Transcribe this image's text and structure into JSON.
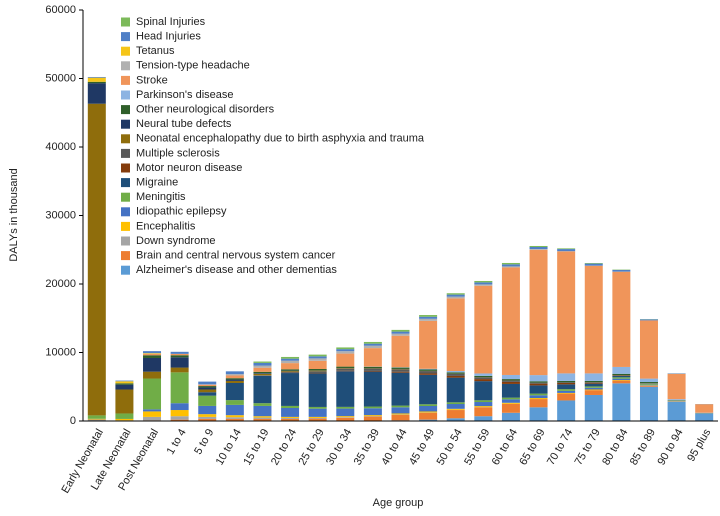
{
  "chart_data": {
    "type": "stacked_bar",
    "y_label": "DALYs in thousand",
    "x_label": "Age group",
    "categories": [
      "Early Neonatal",
      "Late Neonatal",
      "Post Neonatal",
      "1 to 4",
      "5 to 9",
      "10 to 14",
      "15 to 19",
      "20 to 24",
      "25 to 29",
      "30 to 34",
      "35 to 39",
      "40 to 44",
      "45 to 49",
      "50 to 54",
      "55 to 59",
      "60 to 64",
      "65 to 69",
      "70 to 74",
      "75 to 79",
      "80 to 84",
      "85 to 89",
      "90 to 94",
      "95 plus"
    ],
    "ylim": [
      0,
      60000
    ],
    "yticks": [
      0,
      10000,
      20000,
      30000,
      40000,
      50000,
      60000
    ],
    "grid": false,
    "legend": "upper left",
    "series": [
      {
        "name": "Spinal Injuries",
        "color": "#7cba5a",
        "values": [
          0,
          0,
          0,
          0,
          0,
          0,
          200,
          250,
          250,
          250,
          250,
          250,
          250,
          200,
          200,
          200,
          150,
          100,
          80,
          50,
          30,
          10,
          5
        ]
      },
      {
        "name": "Head Injuries",
        "color": "#4f7fc6",
        "values": [
          100,
          100,
          300,
          300,
          400,
          400,
          400,
          300,
          300,
          300,
          300,
          300,
          300,
          300,
          300,
          300,
          300,
          300,
          300,
          250,
          150,
          60,
          20
        ]
      },
      {
        "name": "Tetanus",
        "color": "#f5c518",
        "values": [
          600,
          300,
          100,
          0,
          0,
          0,
          0,
          0,
          0,
          0,
          0,
          0,
          0,
          0,
          0,
          0,
          0,
          0,
          0,
          0,
          0,
          0,
          0
        ]
      },
      {
        "name": "Tension-type headache",
        "color": "#b0b0b0",
        "values": [
          0,
          0,
          0,
          0,
          50,
          200,
          300,
          350,
          350,
          350,
          350,
          300,
          300,
          250,
          200,
          150,
          100,
          50,
          30,
          20,
          0,
          0,
          0
        ]
      },
      {
        "name": "Stroke",
        "color": "#f0955a",
        "values": [
          0,
          0,
          200,
          200,
          200,
          400,
          600,
          900,
          1200,
          1900,
          2700,
          4600,
          7000,
          10600,
          12800,
          15700,
          18300,
          17800,
          15700,
          13900,
          8500,
          3700,
          1250
        ]
      },
      {
        "name": "Parkinson's disease",
        "color": "#8db4e2",
        "values": [
          0,
          0,
          0,
          0,
          0,
          0,
          0,
          0,
          0,
          0,
          30,
          50,
          100,
          200,
          350,
          600,
          900,
          1100,
          1100,
          1000,
          500,
          150,
          40
        ]
      },
      {
        "name": "Other neurological disorders",
        "color": "#2f5f2a",
        "values": [
          200,
          200,
          400,
          300,
          200,
          200,
          200,
          200,
          200,
          200,
          200,
          200,
          200,
          200,
          200,
          200,
          200,
          200,
          200,
          200,
          150,
          60,
          20
        ]
      },
      {
        "name": "Neural tube defects",
        "color": "#1f3864",
        "values": [
          3000,
          700,
          2000,
          1500,
          300,
          200,
          100,
          50,
          30,
          20,
          0,
          0,
          0,
          0,
          0,
          0,
          0,
          0,
          0,
          0,
          0,
          0,
          0
        ]
      },
      {
        "name": "Neonatal encephalopathy due to birth asphyxia and trauma",
        "color": "#8f6d0c",
        "values": [
          45500,
          3500,
          1000,
          700,
          400,
          300,
          200,
          100,
          100,
          80,
          50,
          50,
          30,
          20,
          20,
          10,
          0,
          0,
          0,
          0,
          0,
          0,
          0
        ]
      },
      {
        "name": "Multiple sclerosis",
        "color": "#595959",
        "values": [
          0,
          0,
          0,
          0,
          0,
          0,
          50,
          150,
          250,
          300,
          350,
          350,
          350,
          300,
          250,
          200,
          150,
          100,
          50,
          30,
          10,
          0,
          0
        ]
      },
      {
        "name": "Motor neuron disease",
        "color": "#843c0c",
        "values": [
          0,
          0,
          0,
          0,
          0,
          0,
          30,
          50,
          60,
          80,
          100,
          150,
          200,
          250,
          300,
          300,
          250,
          200,
          150,
          80,
          30,
          10,
          0
        ]
      },
      {
        "name": "Migraine",
        "color": "#1f4e79",
        "values": [
          0,
          0,
          0,
          0,
          500,
          2500,
          4000,
          4800,
          4900,
          5200,
          5100,
          4800,
          4300,
          3600,
          2800,
          2000,
          1200,
          700,
          400,
          200,
          50,
          10,
          0
        ]
      },
      {
        "name": "Meningitis",
        "color": "#70ad47",
        "values": [
          500,
          800,
          4500,
          4500,
          1500,
          700,
          400,
          300,
          250,
          250,
          250,
          250,
          250,
          250,
          250,
          250,
          250,
          250,
          200,
          200,
          150,
          60,
          20
        ]
      },
      {
        "name": "Idiopathic epilepsy",
        "color": "#4472c4",
        "values": [
          0,
          0,
          300,
          1000,
          1200,
          1500,
          1500,
          1300,
          1200,
          1100,
          1000,
          900,
          800,
          700,
          600,
          500,
          400,
          300,
          250,
          200,
          100,
          40,
          10
        ]
      },
      {
        "name": "Encephalitis",
        "color": "#ffc000",
        "values": [
          100,
          200,
          800,
          900,
          400,
          300,
          200,
          150,
          150,
          150,
          150,
          150,
          150,
          150,
          150,
          150,
          150,
          100,
          100,
          80,
          50,
          20,
          5
        ]
      },
      {
        "name": "Down syndrome",
        "color": "#a5a5a5",
        "values": [
          200,
          100,
          500,
          500,
          300,
          250,
          200,
          150,
          100,
          80,
          60,
          50,
          40,
          30,
          20,
          10,
          0,
          0,
          0,
          0,
          0,
          0,
          0
        ]
      },
      {
        "name": "Brain and central nervous system cancer",
        "color": "#ed7d31",
        "values": [
          20,
          0,
          100,
          200,
          300,
          300,
          300,
          300,
          350,
          450,
          600,
          800,
          1000,
          1200,
          1300,
          1300,
          1200,
          1000,
          700,
          400,
          150,
          40,
          10
        ]
      },
      {
        "name": "Alzheimer's disease and other dementias",
        "color": "#5b9bd5",
        "values": [
          0,
          0,
          0,
          0,
          0,
          0,
          0,
          0,
          0,
          30,
          50,
          100,
          200,
          400,
          700,
          1200,
          2000,
          3000,
          3800,
          5500,
          5000,
          2800,
          1100
        ]
      }
    ]
  }
}
